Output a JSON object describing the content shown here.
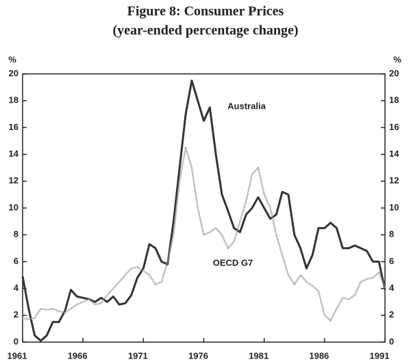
{
  "chart_data": {
    "type": "line",
    "title": "Figure 8:  Consumer Prices",
    "subtitle": "(year-ended percentage change)",
    "y_label": "%",
    "y2_label": "%",
    "x": [
      1961,
      1961.5,
      1962,
      1962.5,
      1963,
      1963.5,
      1964,
      1964.5,
      1965,
      1965.5,
      1966,
      1966.5,
      1967,
      1967.5,
      1968,
      1968.5,
      1969,
      1969.5,
      1970,
      1970.5,
      1971,
      1971.5,
      1972,
      1972.5,
      1973,
      1973.5,
      1974,
      1974.5,
      1975,
      1975.5,
      1976,
      1976.5,
      1977,
      1977.5,
      1978,
      1978.5,
      1979,
      1979.5,
      1980,
      1980.5,
      1981,
      1981.5,
      1982,
      1982.5,
      1983,
      1983.5,
      1984,
      1984.5,
      1985,
      1985.5,
      1986,
      1986.5,
      1987,
      1987.5,
      1988,
      1988.5,
      1989,
      1989.5,
      1990,
      1990.5,
      1991
    ],
    "series": [
      {
        "name": "Australia",
        "color": "#333333",
        "values": [
          4.9,
          2.5,
          0.5,
          0.1,
          0.5,
          1.5,
          1.5,
          2.3,
          3.9,
          3.4,
          3.3,
          3.2,
          3.0,
          3.3,
          3.0,
          3.4,
          2.8,
          2.9,
          3.5,
          4.8,
          5.5,
          7.3,
          7.0,
          6.0,
          5.8,
          9.0,
          13.0,
          17.0,
          19.5,
          18.0,
          16.5,
          17.5,
          14.0,
          11.0,
          9.8,
          8.5,
          8.2,
          9.5,
          10.0,
          10.8,
          10.0,
          9.2,
          9.5,
          11.2,
          11.0,
          8.0,
          7.0,
          5.5,
          6.5,
          8.5,
          8.5,
          8.9,
          8.5,
          7.0,
          7.0,
          7.2,
          7.0,
          6.8,
          6.0,
          6.0,
          3.9
        ]
      },
      {
        "name": "OECD G7",
        "color": "#9a9a9a",
        "values": [
          1.8,
          1.7,
          1.8,
          2.5,
          2.4,
          2.5,
          2.3,
          2.2,
          2.5,
          2.8,
          3.0,
          3.2,
          2.8,
          2.9,
          3.5,
          4.0,
          4.5,
          5.0,
          5.5,
          5.6,
          5.3,
          5.0,
          4.3,
          4.5,
          6.0,
          8.0,
          12.0,
          14.5,
          13.0,
          10.0,
          8.0,
          8.2,
          8.5,
          8.0,
          7.0,
          7.5,
          9.0,
          10.5,
          12.5,
          13.0,
          11.0,
          10.0,
          8.0,
          6.5,
          5.0,
          4.3,
          5.0,
          4.5,
          4.2,
          3.8,
          2.0,
          1.6,
          2.5,
          3.3,
          3.2,
          3.5,
          4.5,
          4.7,
          4.8,
          5.2,
          4.0
        ]
      }
    ],
    "xlim": [
      1961,
      1991
    ],
    "xticks": [
      1961,
      1966,
      1971,
      1976,
      1981,
      1986,
      1991
    ],
    "ylim": [
      0,
      20
    ],
    "yticks": [
      0,
      2,
      4,
      6,
      8,
      10,
      12,
      14,
      16,
      18,
      20
    ],
    "y2lim": [
      0,
      20
    ],
    "y2ticks": [
      0,
      2,
      4,
      6,
      8,
      10,
      12,
      14,
      16,
      18,
      20
    ]
  }
}
